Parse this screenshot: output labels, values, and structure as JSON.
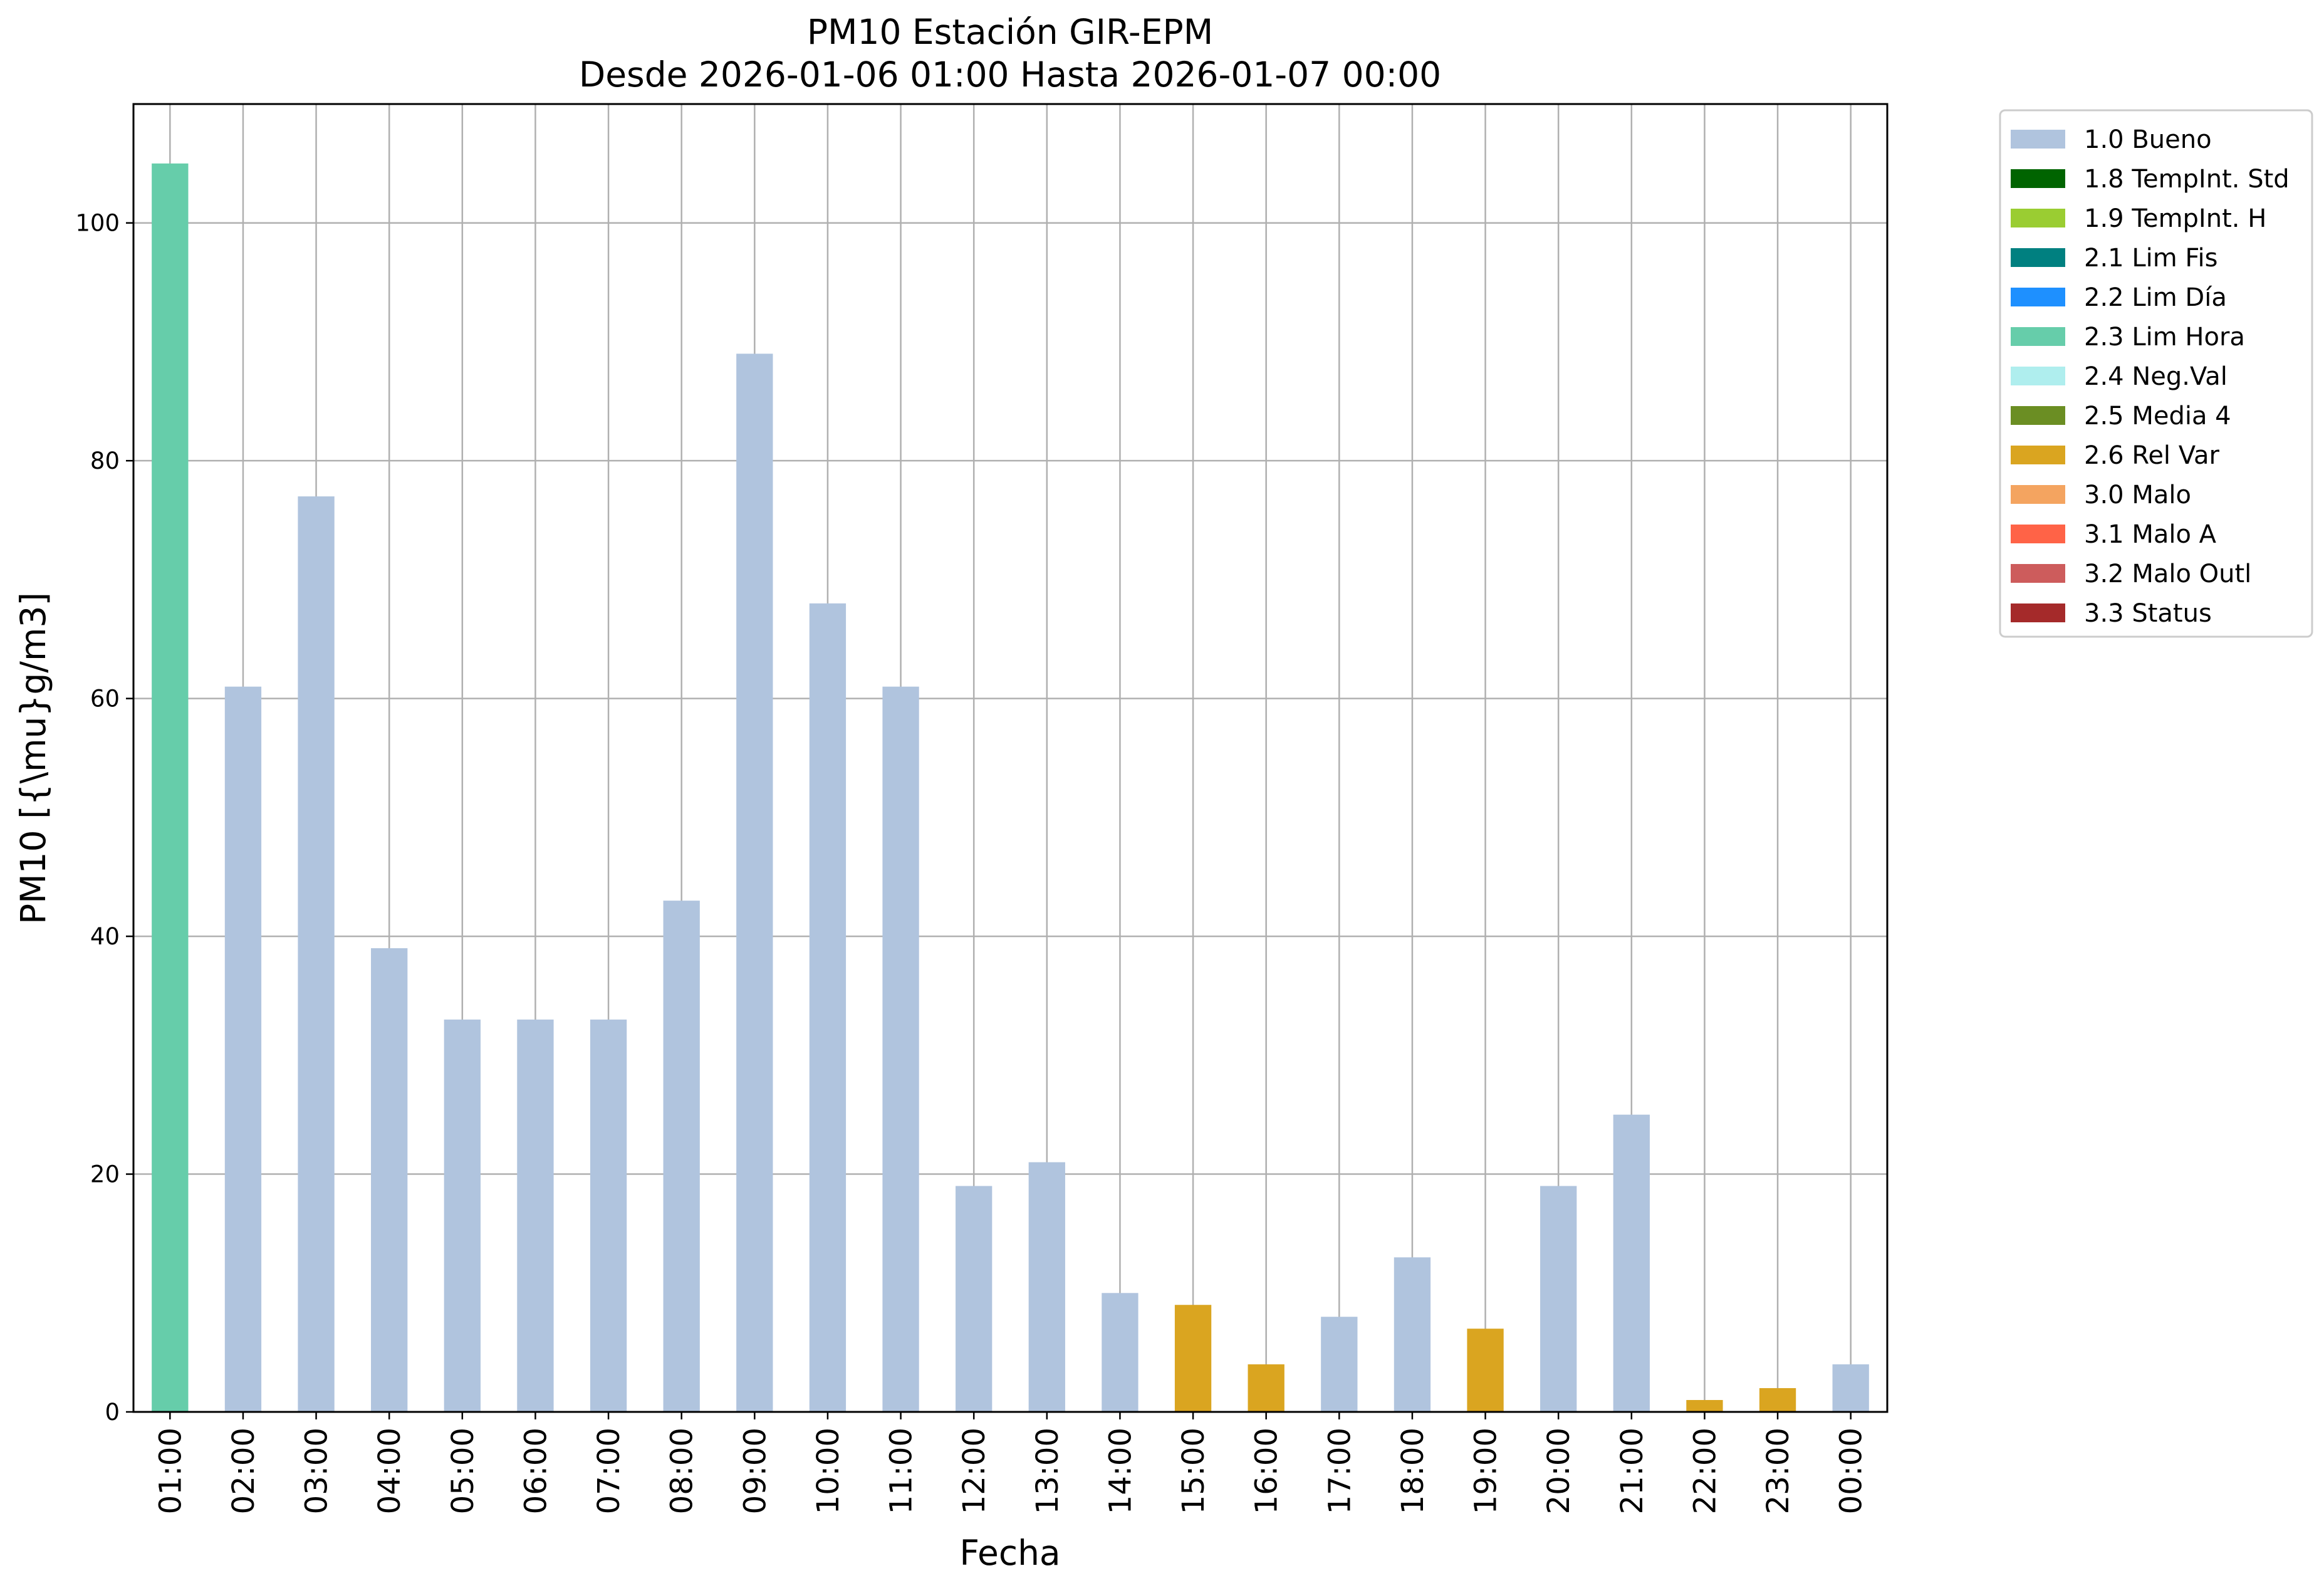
{
  "chart_data": {
    "type": "bar",
    "title": "PM10 Estación GIR-EPM",
    "subtitle": "Desde 2026-01-06 01:00 Hasta 2026-01-07 00:00",
    "xlabel": "Fecha",
    "ylabel": "PM10 [{\\mu}g/m3]",
    "ylim": [
      0,
      110
    ],
    "yticks": [
      0,
      20,
      40,
      60,
      80,
      100
    ],
    "grid": true,
    "legend_position": "outside-top-right",
    "categories": [
      "01:00",
      "02:00",
      "03:00",
      "04:00",
      "05:00",
      "06:00",
      "07:00",
      "08:00",
      "09:00",
      "10:00",
      "11:00",
      "12:00",
      "13:00",
      "14:00",
      "15:00",
      "16:00",
      "17:00",
      "18:00",
      "19:00",
      "20:00",
      "21:00",
      "22:00",
      "23:00",
      "00:00"
    ],
    "values": [
      105,
      61,
      77,
      39,
      33,
      33,
      33,
      43,
      89,
      68,
      61,
      19,
      21,
      10,
      9,
      4,
      8,
      13,
      7,
      19,
      25,
      1,
      2,
      4
    ],
    "flags": [
      "2.3 Lim Hora",
      "1.0 Bueno",
      "1.0 Bueno",
      "1.0 Bueno",
      "1.0 Bueno",
      "1.0 Bueno",
      "1.0 Bueno",
      "1.0 Bueno",
      "1.0 Bueno",
      "1.0 Bueno",
      "1.0 Bueno",
      "1.0 Bueno",
      "1.0 Bueno",
      "1.0 Bueno",
      "2.6 Rel Var",
      "2.6 Rel Var",
      "1.0 Bueno",
      "1.0 Bueno",
      "2.6 Rel Var",
      "1.0 Bueno",
      "1.0 Bueno",
      "2.6 Rel Var",
      "2.6 Rel Var",
      "1.0 Bueno"
    ],
    "legend": [
      {
        "label": "1.0 Bueno",
        "color": "#b0c4de"
      },
      {
        "label": "1.8 TempInt. Std",
        "color": "#006400"
      },
      {
        "label": "1.9 TempInt. H",
        "color": "#9acd32"
      },
      {
        "label": "2.1 Lim Fis",
        "color": "#008080"
      },
      {
        "label": "2.2 Lim Día",
        "color": "#1e90ff"
      },
      {
        "label": "2.3 Lim Hora",
        "color": "#66cdaa"
      },
      {
        "label": "2.4 Neg.Val",
        "color": "#afeeee"
      },
      {
        "label": "2.5 Media 4",
        "color": "#6b8e23"
      },
      {
        "label": "2.6 Rel Var",
        "color": "#daa520"
      },
      {
        "label": "3.0 Malo",
        "color": "#f4a460"
      },
      {
        "label": "3.1 Malo A",
        "color": "#ff6347"
      },
      {
        "label": "3.2 Malo Outl",
        "color": "#cd5c5c"
      },
      {
        "label": "3.3 Status",
        "color": "#a52a2a"
      }
    ]
  }
}
